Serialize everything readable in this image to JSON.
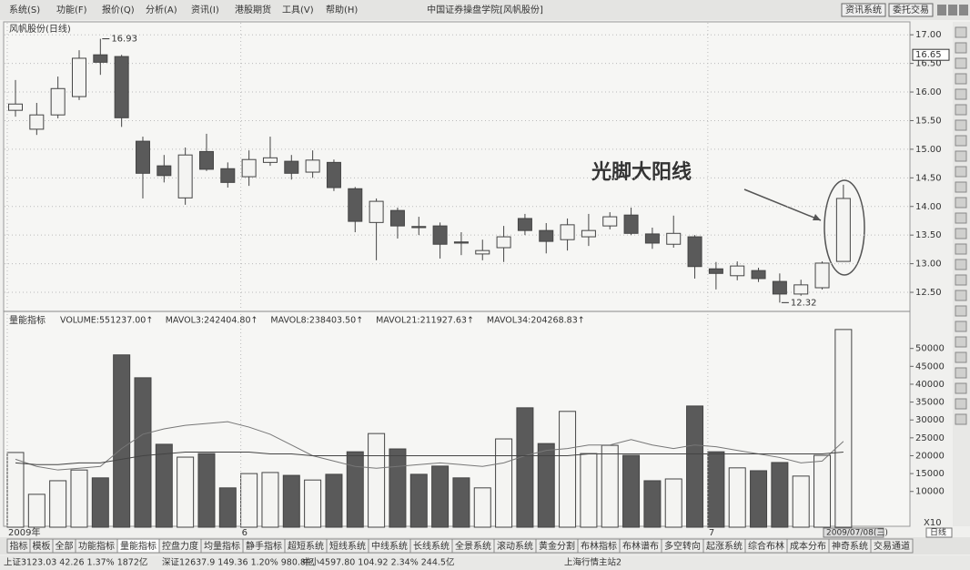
{
  "menu": [
    "系统(S)",
    "功能(F)",
    "报价(Q)",
    "分析(A)",
    "资讯(I)",
    "港股期货",
    "工具(V)",
    "帮助(H)"
  ],
  "window_title": "中国证券操盘学院[风帆股份]",
  "buttons": [
    "资讯系统",
    "委托交易"
  ],
  "chart_data": [
    {
      "type": "candlestick",
      "title": "风帆股份(日线)",
      "annotation": "光脚大阳线",
      "open": [
        15.68,
        15.35,
        15.6,
        15.92,
        16.65,
        16.62,
        15.14,
        14.71,
        14.15,
        14.96,
        14.66,
        14.52,
        14.77,
        14.79,
        14.6,
        14.77,
        14.31,
        13.72,
        13.93,
        13.65,
        13.66,
        13.38,
        13.17,
        13.28,
        13.79,
        13.58,
        13.42,
        13.47,
        13.66,
        13.85,
        13.52,
        13.34,
        13.47,
        12.91,
        12.79,
        12.88,
        12.69,
        12.47,
        12.58,
        13.04
      ],
      "high": [
        16.21,
        15.81,
        16.27,
        16.73,
        16.93,
        16.65,
        15.22,
        14.9,
        15.03,
        15.27,
        14.77,
        14.98,
        15.22,
        14.9,
        14.98,
        14.82,
        14.34,
        14.14,
        13.98,
        13.82,
        13.72,
        13.55,
        13.42,
        13.66,
        13.87,
        13.71,
        13.79,
        13.87,
        13.9,
        13.98,
        13.63,
        13.84,
        13.5,
        13.03,
        13.04,
        12.93,
        12.83,
        12.72,
        13.04,
        14.38
      ],
      "low": [
        15.57,
        15.25,
        15.54,
        15.86,
        16.3,
        15.39,
        14.14,
        14.42,
        14.03,
        14.62,
        14.33,
        14.36,
        14.71,
        14.47,
        14.5,
        14.27,
        13.55,
        13.06,
        13.44,
        13.5,
        13.09,
        13.15,
        13.06,
        13.03,
        13.5,
        13.18,
        13.23,
        13.31,
        13.6,
        13.5,
        13.26,
        13.28,
        12.74,
        12.55,
        12.71,
        12.68,
        12.32,
        12.44,
        12.55,
        13.04
      ],
      "close": [
        15.79,
        15.6,
        16.06,
        16.59,
        16.52,
        15.55,
        14.58,
        14.54,
        14.9,
        14.65,
        14.42,
        14.82,
        14.85,
        14.58,
        14.81,
        14.33,
        13.74,
        14.09,
        13.66,
        13.63,
        13.34,
        13.36,
        13.23,
        13.47,
        13.58,
        13.39,
        13.68,
        13.58,
        13.82,
        13.53,
        13.36,
        13.53,
        12.95,
        12.83,
        12.96,
        12.74,
        12.47,
        12.63,
        13.01,
        14.14
      ],
      "cursor_price": 16.65,
      "ylim": [
        12.23,
        17.21
      ],
      "yticks": [
        {
          "value": 17,
          "label": "17.00"
        },
        {
          "value": 16.5,
          "label": "16.50"
        },
        {
          "value": 16,
          "label": "16.00"
        },
        {
          "value": 15.5,
          "label": "15.50"
        },
        {
          "value": 15,
          "label": "15.00"
        },
        {
          "value": 14.5,
          "label": "14.50"
        },
        {
          "value": 14,
          "label": "14.00"
        },
        {
          "value": 13.5,
          "label": "13.50"
        },
        {
          "value": 13,
          "label": "13.00"
        },
        {
          "value": 12.5,
          "label": "12.50"
        }
      ],
      "up_color": "#f4f4f2",
      "down_color": "#5a5a5a",
      "grid": true
    },
    {
      "type": "bar",
      "title": "量能指标",
      "legend": [
        "VOLUME:551237.00↑",
        "MAVOL3:242404.80↑",
        "MAVOL8:238403.50↑",
        "MAVOL21:211927.63↑",
        "MAVOL34:204268.83↑"
      ],
      "categories": [
        "2009年",
        null,
        null,
        null,
        null,
        null,
        null,
        null,
        null,
        null,
        null,
        "6",
        null,
        null,
        null,
        null,
        null,
        null,
        null,
        null,
        null,
        null,
        null,
        null,
        null,
        null,
        null,
        null,
        null,
        null,
        null,
        null,
        null,
        "7",
        null,
        null,
        null,
        null,
        null,
        null
      ],
      "values": [
        20900,
        9200,
        13000,
        16000,
        13800,
        48200,
        41800,
        23200,
        19600,
        20600,
        11000,
        15000,
        15300,
        14500,
        13200,
        14800,
        21100,
        26200,
        21900,
        14800,
        17100,
        13800,
        11000,
        24700,
        33400,
        23400,
        32400,
        20600,
        22900,
        20100,
        13000,
        13500,
        33900,
        21100,
        16600,
        15800,
        18100,
        14300,
        20100,
        55300
      ],
      "lines": [
        {
          "color": "#777777",
          "values": [
            19000,
            17000,
            16000,
            16500,
            17000,
            22000,
            26000,
            27500,
            28500,
            29000,
            29500,
            28000,
            26000,
            23000,
            20000,
            18500,
            17000,
            16500,
            17000,
            17500,
            18000,
            17500,
            17000,
            18000,
            20000,
            21500,
            22000,
            23000,
            23000,
            24500,
            23000,
            22000,
            23000,
            22500,
            21500,
            20500,
            19500,
            18000,
            18500,
            24000
          ]
        },
        {
          "color": "#444444",
          "values": [
            18000,
            17500,
            17500,
            18000,
            18000,
            19000,
            20000,
            20500,
            21000,
            21000,
            21000,
            21000,
            20500,
            20500,
            20000,
            20000,
            20000,
            20000,
            20000,
            20000,
            20000,
            20000,
            20000,
            20000,
            20000,
            20000,
            20000,
            20500,
            20500,
            20500,
            20500,
            20500,
            20500,
            20500,
            20500,
            20500,
            20500,
            20500,
            20500,
            21000
          ]
        }
      ],
      "ylim": [
        0,
        59600
      ],
      "yticks": [
        10000,
        15000,
        20000,
        25000,
        30000,
        35000,
        40000,
        45000,
        50000
      ],
      "scale_note": "X10",
      "cursor_date": "2009/07/08(三)",
      "period": "日线"
    }
  ],
  "tabs": [
    "指标",
    "模板",
    "全部",
    "功能指标",
    "量能指标",
    "控盘力度",
    "均量指标",
    "静手指标",
    "超短系统",
    "短线系统",
    "中线系统",
    "长线系统",
    "全景系统",
    "滚动系统",
    "黄金分割",
    "布林指标",
    "布林谱布",
    "多空转向",
    "起涨系统",
    "综合布林",
    "成本分布",
    "神奇系统",
    "交易通道"
  ],
  "status": [
    "上证3123.03  42.26  1.37%  1872亿",
    "深证12637.9  149.36  1.20%  980.8亿",
    "中小4597.80  104.92  2.34%  244.5亿",
    "上海行情主站2"
  ]
}
